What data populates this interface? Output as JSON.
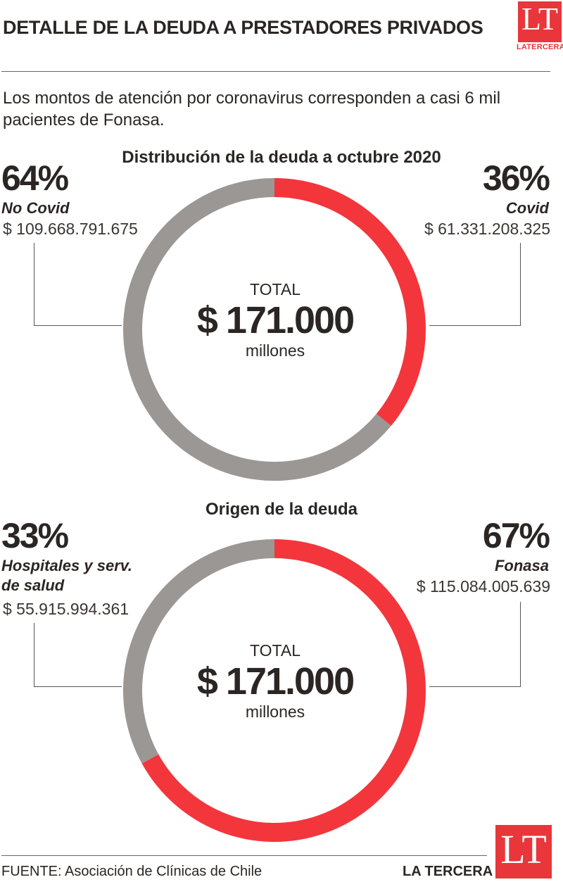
{
  "header": {
    "title": "DETALLE DE LA DEUDA A PRESTADORES PRIVADOS",
    "logo_letters": "LT",
    "logo_caption": "LATERCERA",
    "subtitle": "Los montos de atención por coronavirus corresponden a casi 6 mil pacientes de Fonasa."
  },
  "colors": {
    "accent": "#f2363c",
    "neutral": "#9a9794",
    "text": "#2b2623"
  },
  "chart_data": [
    {
      "type": "pie",
      "title": "Distribución de la deuda a octubre 2020",
      "center": {
        "label": "TOTAL",
        "value": "$ 171.000",
        "unit": "millones"
      },
      "slices": [
        {
          "name": "Covid",
          "percent_label": "36%",
          "amount": "$ 61.331.208.325",
          "value": 36,
          "color": "#f2363c"
        },
        {
          "name": "No Covid",
          "percent_label": "64%",
          "amount": "$ 109.668.791.675",
          "value": 64,
          "color": "#9a9794"
        }
      ]
    },
    {
      "type": "pie",
      "title": "Origen de la deuda",
      "center": {
        "label": "TOTAL",
        "value": "$ 171.000",
        "unit": "millones"
      },
      "slices": [
        {
          "name": "Fonasa",
          "percent_label": "67%",
          "amount": "$ 115.084.005.639",
          "value": 67,
          "color": "#f2363c"
        },
        {
          "name": "Hospitales y serv. de salud",
          "percent_label": "33%",
          "amount": "$ 55.915.994.361",
          "value": 33,
          "color": "#9a9794"
        }
      ]
    }
  ],
  "footer": {
    "source": "FUENTE: Asociación de Clínicas de Chile",
    "brand": "LA TERCERA",
    "logo_letters": "LT"
  }
}
